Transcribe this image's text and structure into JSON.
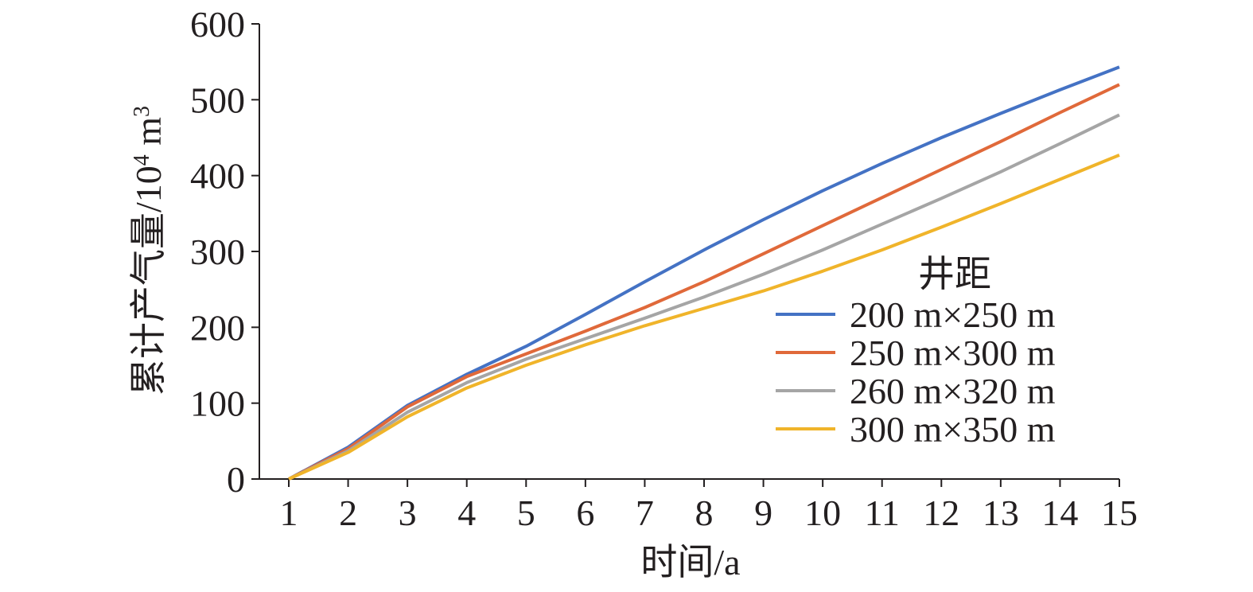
{
  "chart_data": {
    "type": "line",
    "title": "",
    "xlabel": "时间/a",
    "ylabel": "累计产气量/10",
    "ylabel_sup": "4",
    "ylabel_unit": " m",
    "ylabel_unit_sup": "3",
    "x": [
      1,
      2,
      3,
      4,
      5,
      6,
      7,
      8,
      9,
      10,
      11,
      12,
      13,
      14,
      15
    ],
    "xlim": [
      1,
      15
    ],
    "ylim": [
      0,
      600
    ],
    "yticks": [
      0,
      100,
      200,
      300,
      400,
      500,
      600
    ],
    "grid": false,
    "legend": {
      "title": "井距",
      "position": "right-center"
    },
    "series": [
      {
        "name": "200 m×250 m",
        "color": "#4472c4",
        "values": [
          0,
          42,
          97,
          138,
          175,
          217,
          260,
          302,
          342,
          380,
          416,
          450,
          482,
          513,
          543
        ]
      },
      {
        "name": "250 m×300 m",
        "color": "#e0693a",
        "values": [
          0,
          40,
          95,
          135,
          165,
          195,
          226,
          260,
          297,
          334,
          371,
          408,
          445,
          483,
          520
        ]
      },
      {
        "name": "260 m×320 m",
        "color": "#a5a5a5",
        "values": [
          0,
          37,
          88,
          127,
          158,
          185,
          212,
          240,
          270,
          302,
          336,
          370,
          405,
          442,
          480
        ]
      },
      {
        "name": "300 m×350 m",
        "color": "#f0b42a",
        "values": [
          0,
          35,
          82,
          120,
          150,
          177,
          202,
          225,
          248,
          274,
          302,
          332,
          363,
          395,
          427
        ]
      }
    ]
  }
}
